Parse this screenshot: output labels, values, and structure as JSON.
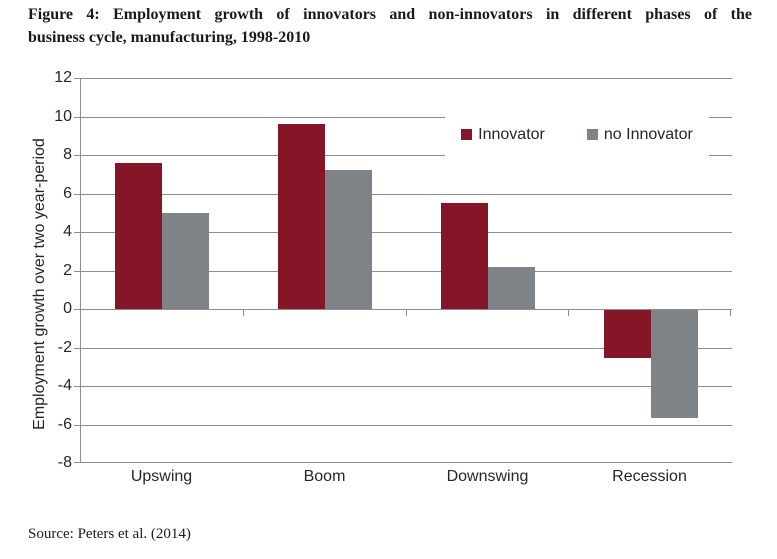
{
  "title": {
    "line1": "Figure 4: Employment growth of innovators and non-innovators in different phases of the",
    "line2": "business cycle, manufacturing, 1998-2010"
  },
  "source": "Source: Peters et al. (2014)",
  "colors": {
    "innovator_red": "#851627",
    "no_innovator_gray": "#7E8387",
    "gridline_gray": "#8E8E8E",
    "text": "#262626"
  },
  "chart_data": {
    "type": "bar",
    "title": "",
    "categories": [
      "Upswing",
      "Boom",
      "Downswing",
      "Recession"
    ],
    "series": [
      {
        "name": "Innovator",
        "color": "#851627",
        "values": [
          7.6,
          9.6,
          5.5,
          -2.5
        ]
      },
      {
        "name": "no Innovator",
        "color": "#7E8387",
        "values": [
          5.0,
          7.2,
          2.2,
          -5.6
        ]
      }
    ],
    "xlabel": "",
    "ylabel": "Employment growth over two year-period",
    "ylim": [
      -8,
      12
    ],
    "ytick_step": 2,
    "grid": true,
    "legend_position": "top-right-inside"
  }
}
